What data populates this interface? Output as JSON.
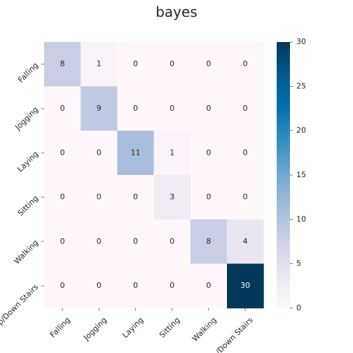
{
  "chart_data": {
    "type": "heatmap",
    "title": "bayes",
    "xlabel": "",
    "ylabel": "",
    "x_categories": [
      "Falling",
      "Jogging",
      "Laying",
      "Sitting",
      "Walking",
      "Up/Down Stairs"
    ],
    "y_categories": [
      "Falling",
      "Jogging",
      "Laying",
      "Sitting",
      "Walking",
      "Up/Down Stairs"
    ],
    "values": [
      [
        8,
        1,
        0,
        0,
        0,
        0
      ],
      [
        0,
        9,
        0,
        0,
        0,
        0
      ],
      [
        0,
        0,
        11,
        1,
        0,
        0
      ],
      [
        0,
        0,
        0,
        3,
        0,
        0
      ],
      [
        0,
        0,
        0,
        0,
        8,
        4
      ],
      [
        0,
        0,
        0,
        0,
        0,
        30
      ]
    ],
    "colorbar": {
      "min": 0,
      "max": 30,
      "ticks": [
        "0",
        "5",
        "10",
        "15",
        "20",
        "25",
        "30"
      ]
    },
    "colormap": "PuBu",
    "colors": {
      "low": "#fff7fb",
      "high": "#023858",
      "text_dark": "#262626",
      "text_light": "#ffffff"
    },
    "grid": false,
    "legend": "colorbar-right"
  }
}
